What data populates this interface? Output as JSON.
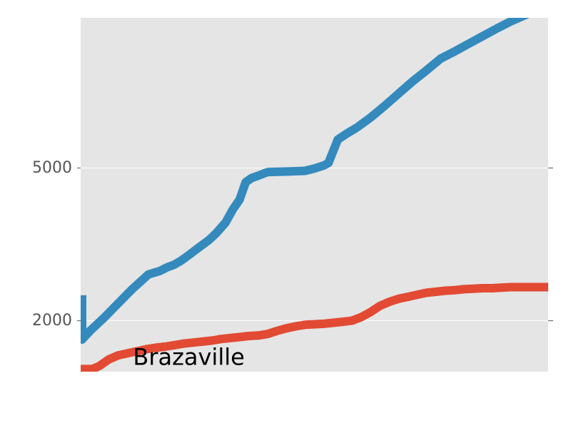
{
  "chart_data": {
    "type": "line",
    "title": "",
    "xlabel": "",
    "ylabel": "",
    "ylim": [
      1000,
      7950
    ],
    "xlim": [
      0,
      100
    ],
    "y_tick_values": [
      2000,
      5000
    ],
    "y_tick_labels": [
      "2000",
      "5000"
    ],
    "grid": true,
    "legend": "none",
    "annotations": [
      {
        "text": "Brazaville",
        "x": 11.2,
        "y": 1290
      }
    ],
    "series": [
      {
        "color": "#348abd",
        "points": [
          [
            0.3,
            2500
          ],
          [
            0.3,
            1630
          ],
          [
            2,
            1800
          ],
          [
            5,
            2060
          ],
          [
            8,
            2340
          ],
          [
            11,
            2620
          ],
          [
            14.5,
            2910
          ],
          [
            17,
            2980
          ],
          [
            18.5,
            3050
          ],
          [
            20,
            3100
          ],
          [
            21.5,
            3180
          ],
          [
            23,
            3280
          ],
          [
            25,
            3420
          ],
          [
            27.5,
            3590
          ],
          [
            29,
            3720
          ],
          [
            31,
            3930
          ],
          [
            32.5,
            4180
          ],
          [
            34,
            4380
          ],
          [
            35.3,
            4720
          ],
          [
            36.5,
            4800
          ],
          [
            38,
            4850
          ],
          [
            40,
            4920
          ],
          [
            44,
            4930
          ],
          [
            48,
            4945
          ],
          [
            50,
            4990
          ],
          [
            52,
            5050
          ],
          [
            53,
            5100
          ],
          [
            55,
            5560
          ],
          [
            57,
            5680
          ],
          [
            59,
            5790
          ],
          [
            62,
            5990
          ],
          [
            65,
            6220
          ],
          [
            68,
            6460
          ],
          [
            71,
            6700
          ],
          [
            74,
            6920
          ],
          [
            77,
            7150
          ],
          [
            80,
            7290
          ],
          [
            83,
            7440
          ],
          [
            86,
            7590
          ],
          [
            89,
            7740
          ],
          [
            92,
            7880
          ],
          [
            95,
            8000
          ],
          [
            98,
            8130
          ],
          [
            100,
            8250
          ]
        ]
      },
      {
        "color": "#e24a33",
        "points": [
          [
            0,
            1050
          ],
          [
            2.5,
            1050
          ],
          [
            4,
            1110
          ],
          [
            6,
            1240
          ],
          [
            8,
            1320
          ],
          [
            10,
            1360
          ],
          [
            12,
            1400
          ],
          [
            14,
            1440
          ],
          [
            16,
            1470
          ],
          [
            18,
            1490
          ],
          [
            20,
            1520
          ],
          [
            22,
            1550
          ],
          [
            24,
            1570
          ],
          [
            26,
            1590
          ],
          [
            28,
            1610
          ],
          [
            30,
            1640
          ],
          [
            32,
            1660
          ],
          [
            34,
            1680
          ],
          [
            36,
            1700
          ],
          [
            38,
            1710
          ],
          [
            40,
            1740
          ],
          [
            42,
            1800
          ],
          [
            44,
            1850
          ],
          [
            46,
            1890
          ],
          [
            48,
            1920
          ],
          [
            50,
            1930
          ],
          [
            52,
            1940
          ],
          [
            54,
            1960
          ],
          [
            56,
            1980
          ],
          [
            58,
            2000
          ],
          [
            60,
            2070
          ],
          [
            62,
            2170
          ],
          [
            64,
            2290
          ],
          [
            66,
            2370
          ],
          [
            68,
            2430
          ],
          [
            70,
            2470
          ],
          [
            72,
            2510
          ],
          [
            74,
            2550
          ],
          [
            76,
            2570
          ],
          [
            78,
            2590
          ],
          [
            80,
            2600
          ],
          [
            82,
            2620
          ],
          [
            84,
            2630
          ],
          [
            86,
            2640
          ],
          [
            88,
            2640
          ],
          [
            90,
            2650
          ],
          [
            92,
            2660
          ],
          [
            94,
            2660
          ],
          [
            96,
            2660
          ],
          [
            98,
            2660
          ],
          [
            100,
            2660
          ]
        ]
      }
    ]
  }
}
